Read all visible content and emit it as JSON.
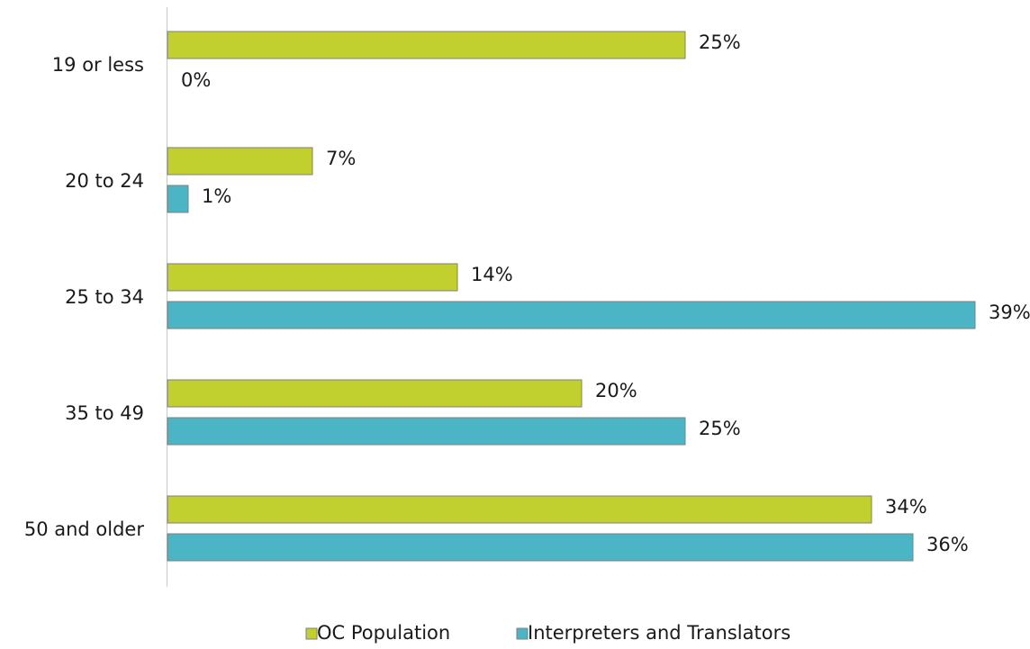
{
  "chart_data": {
    "type": "bar",
    "orientation": "horizontal",
    "categories": [
      "19 or less",
      "20 to 24",
      "25 to 34",
      "35 to 49",
      "50 and older"
    ],
    "series": [
      {
        "name": "OC Population",
        "color": "#c2d02f",
        "values": [
          25,
          7,
          14,
          20,
          34
        ],
        "value_labels": [
          "25%",
          "7%",
          "14%",
          "20%",
          "34%"
        ]
      },
      {
        "name": "Interpreters and Translators",
        "color": "#4cb5c5",
        "values": [
          0,
          1,
          39,
          25,
          36
        ],
        "value_labels": [
          "0%",
          "1%",
          "39%",
          "25%",
          "36%"
        ]
      }
    ],
    "legend": "bottom"
  }
}
